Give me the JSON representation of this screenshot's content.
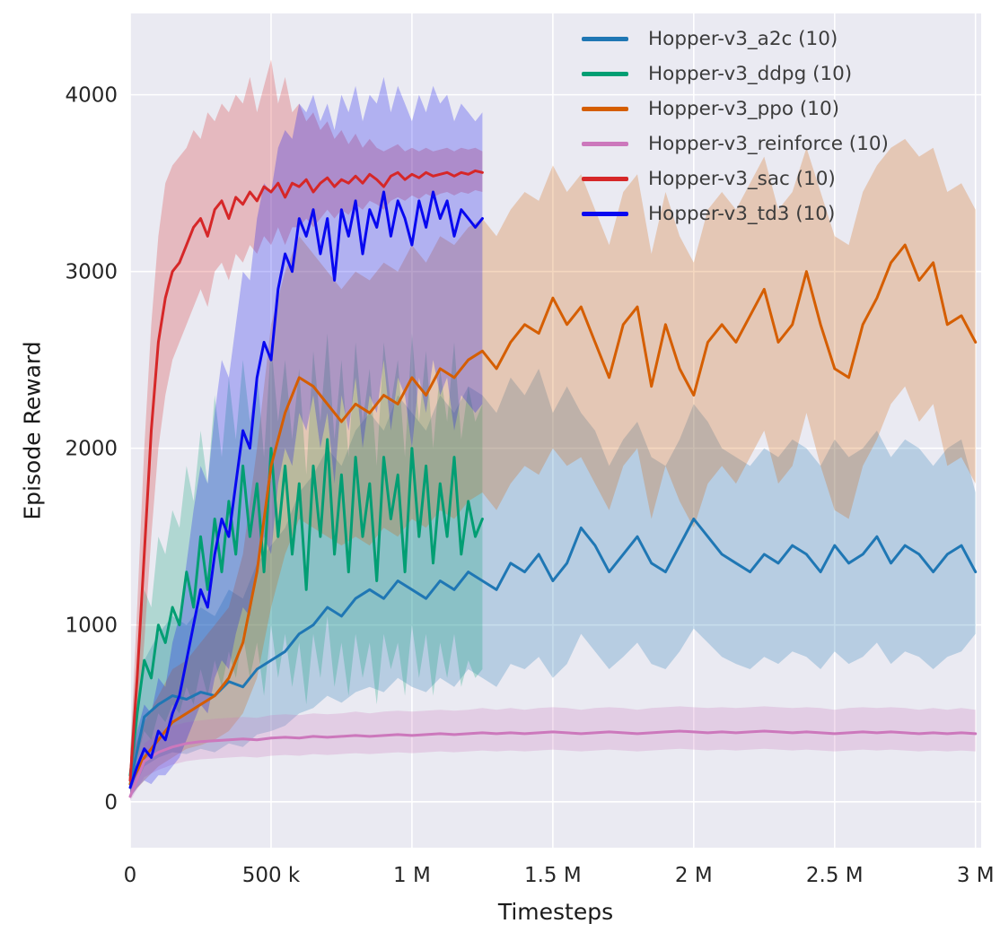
{
  "chart_data": {
    "type": "line",
    "title": "",
    "xlabel": "Timesteps",
    "ylabel": "Episode Reward",
    "xlim": [
      0,
      3020000
    ],
    "ylim": [
      -260,
      4460
    ],
    "grid": true,
    "legend_position": "upper right",
    "band_opacity": 0.25,
    "line_width": 3,
    "colors": {
      "plot_bg": "#eaeaf2",
      "grid": "#ffffff",
      "tick_text": "#262626",
      "label_text": "#1a1a1a",
      "legend_text": "#3c3c3c"
    },
    "y_ticks": [
      0,
      1000,
      2000,
      3000,
      4000
    ],
    "x_ticks": [
      {
        "v": 0,
        "label": "0"
      },
      {
        "v": 500000,
        "label": "500 k"
      },
      {
        "v": 1000000,
        "label": "1 M"
      },
      {
        "v": 1500000,
        "label": "1.5 M"
      },
      {
        "v": 2000000,
        "label": "2 M"
      },
      {
        "v": 2500000,
        "label": "2.5 M"
      },
      {
        "v": 3000000,
        "label": "3 M"
      }
    ],
    "series": [
      {
        "id": "a2c",
        "name": "Hopper-v3_a2c (10)",
        "color": "#1f77b4",
        "x0": 0,
        "dx": 50000,
        "y": [
          100,
          480,
          550,
          600,
          580,
          620,
          600,
          680,
          650,
          750,
          800,
          850,
          950,
          1000,
          1100,
          1050,
          1150,
          1200,
          1150,
          1250,
          1200,
          1150,
          1250,
          1200,
          1300,
          1250,
          1200,
          1350,
          1300,
          1400,
          1250,
          1350,
          1550,
          1450,
          1300,
          1400,
          1500,
          1350,
          1300,
          1450,
          1600,
          1500,
          1400,
          1350,
          1300,
          1400,
          1350,
          1450,
          1400,
          1300,
          1450,
          1350,
          1400,
          1500,
          1350,
          1450,
          1400,
          1300,
          1400,
          1450,
          1300
        ],
        "lo": [
          20,
          200,
          250,
          280,
          270,
          300,
          280,
          330,
          310,
          380,
          400,
          430,
          500,
          530,
          600,
          560,
          620,
          650,
          620,
          700,
          650,
          620,
          700,
          650,
          750,
          700,
          650,
          780,
          750,
          820,
          700,
          780,
          950,
          850,
          750,
          820,
          900,
          780,
          750,
          850,
          980,
          900,
          820,
          780,
          750,
          820,
          780,
          850,
          820,
          750,
          850,
          780,
          820,
          900,
          780,
          850,
          820,
          750,
          820,
          850,
          950
        ],
        "hi": [
          250,
          800,
          950,
          1050,
          1000,
          1100,
          1050,
          1200,
          1150,
          1350,
          1450,
          1550,
          1750,
          1850,
          2000,
          1900,
          2100,
          2200,
          2100,
          2300,
          2200,
          2100,
          2300,
          2200,
          2350,
          2300,
          2200,
          2400,
          2300,
          2450,
          2200,
          2350,
          2200,
          2100,
          1900,
          2050,
          2150,
          1950,
          1900,
          2050,
          2250,
          2150,
          2000,
          1950,
          1900,
          2000,
          1950,
          2050,
          2000,
          1900,
          2050,
          1950,
          2000,
          2100,
          1950,
          2050,
          2000,
          1900,
          2000,
          2050,
          1750
        ]
      },
      {
        "id": "ddpg",
        "name": "Hopper-v3_ddpg (10)",
        "color": "#029e73",
        "x0": 0,
        "dx": 25000,
        "y": [
          150,
          500,
          800,
          700,
          1000,
          900,
          1100,
          1000,
          1300,
          1100,
          1500,
          1200,
          1600,
          1300,
          1700,
          1400,
          1900,
          1500,
          1800,
          1300,
          2000,
          1500,
          1900,
          1400,
          1800,
          1200,
          1900,
          1500,
          2050,
          1400,
          1850,
          1300,
          1950,
          1500,
          1800,
          1250,
          1950,
          1600,
          1850,
          1300,
          2000,
          1500,
          1900,
          1350,
          1800,
          1500,
          1950,
          1400,
          1700,
          1500,
          1600
        ],
        "lo": [
          50,
          250,
          400,
          350,
          500,
          450,
          550,
          500,
          650,
          550,
          750,
          600,
          800,
          650,
          850,
          700,
          950,
          700,
          900,
          600,
          1000,
          700,
          950,
          650,
          900,
          550,
          950,
          700,
          1050,
          650,
          900,
          600,
          950,
          700,
          900,
          550,
          950,
          750,
          900,
          600,
          1000,
          700,
          950,
          600,
          900,
          700,
          950,
          650,
          800,
          700,
          750
        ],
        "hi": [
          300,
          800,
          1200,
          1100,
          1500,
          1400,
          1650,
          1550,
          1900,
          1700,
          2100,
          1800,
          2300,
          1950,
          2400,
          2050,
          2500,
          2150,
          2450,
          1950,
          2600,
          2150,
          2500,
          2050,
          2450,
          1850,
          2550,
          2150,
          2650,
          2050,
          2500,
          1950,
          2600,
          2150,
          2450,
          1900,
          2600,
          2250,
          2500,
          1950,
          2650,
          2150,
          2550,
          2000,
          2450,
          2150,
          2600,
          2050,
          2350,
          2150,
          2250
        ]
      },
      {
        "id": "ppo",
        "name": "Hopper-v3_ppo (10)",
        "color": "#d55e00",
        "x0": 0,
        "dx": 50000,
        "y": [
          100,
          250,
          350,
          450,
          500,
          550,
          600,
          700,
          900,
          1300,
          1900,
          2200,
          2400,
          2350,
          2250,
          2150,
          2250,
          2200,
          2300,
          2250,
          2400,
          2300,
          2450,
          2400,
          2500,
          2550,
          2450,
          2600,
          2700,
          2650,
          2850,
          2700,
          2800,
          2600,
          2400,
          2700,
          2800,
          2350,
          2700,
          2450,
          2300,
          2600,
          2700,
          2600,
          2750,
          2900,
          2600,
          2700,
          3000,
          2700,
          2450,
          2400,
          2700,
          2850,
          3050,
          3150,
          2950,
          3050,
          2700,
          2750,
          2600
        ],
        "lo": [
          30,
          120,
          200,
          250,
          300,
          320,
          350,
          400,
          500,
          700,
          1100,
          1400,
          1600,
          1550,
          1500,
          1450,
          1500,
          1450,
          1550,
          1500,
          1600,
          1550,
          1650,
          1600,
          1700,
          1750,
          1650,
          1800,
          1900,
          1850,
          2000,
          1900,
          1950,
          1800,
          1650,
          1900,
          2000,
          1600,
          1900,
          1700,
          1550,
          1800,
          1900,
          1800,
          1950,
          2100,
          1800,
          1900,
          2200,
          1900,
          1650,
          1600,
          1900,
          2050,
          2250,
          2350,
          2150,
          2250,
          1900,
          1950,
          1800
        ],
        "hi": [
          250,
          450,
          600,
          750,
          800,
          900,
          1000,
          1100,
          1400,
          2000,
          2700,
          3000,
          3200,
          3100,
          3000,
          2900,
          3000,
          2950,
          3050,
          3000,
          3150,
          3050,
          3200,
          3150,
          3250,
          3300,
          3200,
          3350,
          3450,
          3400,
          3600,
          3450,
          3550,
          3350,
          3150,
          3450,
          3550,
          3100,
          3450,
          3200,
          3050,
          3350,
          3450,
          3350,
          3500,
          3650,
          3350,
          3450,
          3700,
          3450,
          3200,
          3150,
          3450,
          3600,
          3700,
          3750,
          3650,
          3700,
          3450,
          3500,
          3350
        ]
      },
      {
        "id": "reinforce",
        "name": "Hopper-v3_reinforce (10)",
        "color": "#cc78bc",
        "x0": 0,
        "dx": 50000,
        "y": [
          30,
          230,
          280,
          310,
          330,
          340,
          345,
          350,
          355,
          350,
          360,
          365,
          360,
          370,
          365,
          370,
          375,
          370,
          375,
          380,
          375,
          380,
          385,
          380,
          385,
          390,
          385,
          390,
          385,
          390,
          395,
          390,
          385,
          390,
          395,
          390,
          385,
          390,
          395,
          400,
          395,
          390,
          395,
          390,
          395,
          400,
          395,
          390,
          395,
          390,
          385,
          390,
          395,
          390,
          395,
          390,
          385,
          390,
          385,
          390,
          385
        ],
        "lo": [
          5,
          140,
          180,
          210,
          230,
          240,
          245,
          250,
          255,
          250,
          260,
          265,
          260,
          270,
          265,
          270,
          275,
          270,
          275,
          280,
          275,
          280,
          285,
          280,
          285,
          290,
          285,
          290,
          285,
          290,
          295,
          290,
          285,
          290,
          295,
          290,
          285,
          290,
          295,
          300,
          295,
          290,
          295,
          290,
          295,
          300,
          295,
          290,
          295,
          290,
          285,
          290,
          295,
          290,
          295,
          290,
          285,
          290,
          285,
          290,
          285
        ],
        "hi": [
          60,
          330,
          390,
          430,
          450,
          460,
          470,
          475,
          480,
          475,
          490,
          495,
          490,
          500,
          495,
          500,
          510,
          500,
          510,
          515,
          510,
          515,
          520,
          515,
          520,
          530,
          520,
          530,
          520,
          530,
          535,
          530,
          520,
          530,
          535,
          530,
          520,
          530,
          535,
          540,
          535,
          530,
          535,
          530,
          535,
          540,
          535,
          530,
          535,
          530,
          520,
          530,
          535,
          530,
          535,
          530,
          520,
          530,
          520,
          530,
          520
        ]
      },
      {
        "id": "sac",
        "name": "Hopper-v3_sac (10)",
        "color": "#d62728",
        "x0": 0,
        "dx": 25000,
        "y": [
          120,
          700,
          1400,
          2100,
          2600,
          2850,
          3000,
          3050,
          3150,
          3250,
          3300,
          3200,
          3350,
          3400,
          3300,
          3420,
          3380,
          3450,
          3400,
          3480,
          3450,
          3500,
          3420,
          3500,
          3480,
          3520,
          3450,
          3500,
          3530,
          3480,
          3520,
          3500,
          3540,
          3500,
          3550,
          3520,
          3480,
          3540,
          3560,
          3520,
          3550,
          3530,
          3560,
          3540,
          3550,
          3560,
          3540,
          3560,
          3550,
          3570,
          3560
        ],
        "lo": [
          50,
          400,
          900,
          1500,
          2000,
          2300,
          2500,
          2600,
          2700,
          2800,
          2900,
          2800,
          3000,
          3050,
          2950,
          3100,
          3050,
          3150,
          3100,
          3200,
          3150,
          3250,
          3150,
          3250,
          3250,
          3300,
          3250,
          3300,
          3350,
          3300,
          3350,
          3320,
          3380,
          3350,
          3400,
          3380,
          3350,
          3400,
          3420,
          3400,
          3430,
          3410,
          3440,
          3420,
          3440,
          3450,
          3430,
          3450,
          3440,
          3460,
          3450
        ],
        "hi": [
          250,
          1100,
          2000,
          2700,
          3200,
          3500,
          3600,
          3650,
          3700,
          3800,
          3750,
          3900,
          3850,
          3950,
          3900,
          4000,
          3950,
          4100,
          3900,
          4050,
          4200,
          3950,
          4100,
          3900,
          3950,
          3850,
          3900,
          3800,
          3850,
          3750,
          3800,
          3720,
          3780,
          3700,
          3750,
          3700,
          3680,
          3700,
          3720,
          3680,
          3700,
          3680,
          3700,
          3680,
          3690,
          3700,
          3680,
          3700,
          3690,
          3700,
          3680
        ]
      },
      {
        "id": "td3",
        "name": "Hopper-v3_td3 (10)",
        "color": "#0808f0",
        "x0": 0,
        "dx": 25000,
        "y": [
          80,
          200,
          300,
          250,
          400,
          350,
          500,
          600,
          800,
          1000,
          1200,
          1100,
          1400,
          1600,
          1500,
          1800,
          2100,
          2000,
          2400,
          2600,
          2500,
          2900,
          3100,
          3000,
          3300,
          3200,
          3350,
          3100,
          3300,
          2950,
          3350,
          3200,
          3400,
          3100,
          3350,
          3250,
          3450,
          3200,
          3400,
          3300,
          3150,
          3400,
          3250,
          3450,
          3300,
          3400,
          3200,
          3350,
          3300,
          3250,
          3300
        ],
        "lo": [
          20,
          80,
          120,
          100,
          150,
          150,
          200,
          250,
          350,
          450,
          550,
          500,
          700,
          800,
          750,
          950,
          1100,
          1050,
          1300,
          1500,
          1400,
          1800,
          2000,
          1900,
          2200,
          2100,
          2300,
          2000,
          2200,
          1800,
          2300,
          2100,
          2400,
          2000,
          2300,
          2200,
          2500,
          2100,
          2400,
          2300,
          2000,
          2400,
          2200,
          2500,
          2300,
          2400,
          2100,
          2300,
          2250,
          2200,
          2250
        ],
        "hi": [
          200,
          400,
          550,
          500,
          700,
          650,
          900,
          1050,
          1350,
          1650,
          1900,
          1800,
          2200,
          2500,
          2400,
          2700,
          3000,
          2950,
          3300,
          3500,
          3450,
          3700,
          3800,
          3750,
          3950,
          3900,
          4000,
          3850,
          3950,
          3800,
          4000,
          3900,
          4050,
          3850,
          4000,
          3950,
          4100,
          3900,
          4050,
          3950,
          3850,
          4000,
          3900,
          4050,
          3950,
          4000,
          3850,
          3950,
          3900,
          3850,
          3900
        ]
      }
    ]
  }
}
